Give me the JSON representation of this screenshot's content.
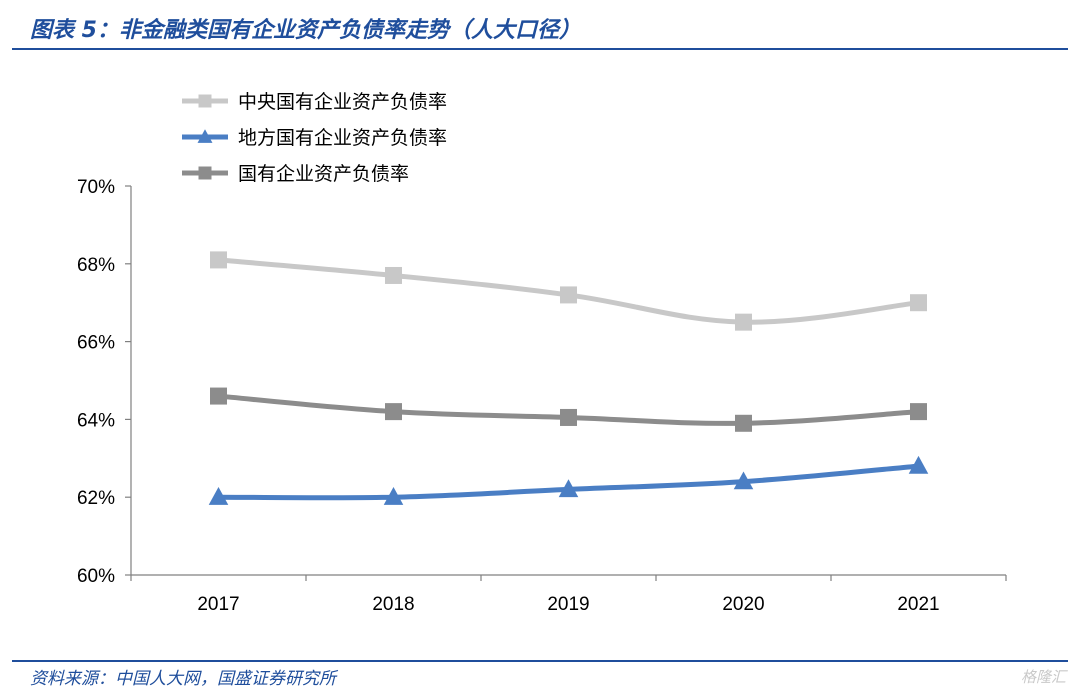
{
  "title": "图表 5：非金融类国有企业资产负债率走势（人大口径）",
  "source": "资料来源：中国人大网，国盛证券研究所",
  "watermark": "格隆汇",
  "chart_data": {
    "type": "line",
    "title": "",
    "xlabel": "",
    "ylabel": "",
    "categories": [
      "2017",
      "2018",
      "2019",
      "2020",
      "2021"
    ],
    "ylim": [
      60,
      70
    ],
    "yticks": [
      60,
      62,
      64,
      66,
      68,
      70
    ],
    "ytick_labels": [
      "60%",
      "62%",
      "64%",
      "66%",
      "68%",
      "70%"
    ],
    "grid": false,
    "legend_position": "top-left",
    "series": [
      {
        "name": "中央国有企业资产负债率",
        "values": [
          68.1,
          67.7,
          67.2,
          66.5,
          67.0
        ],
        "color": "#c8c8c8",
        "marker": "square"
      },
      {
        "name": "地方国有企业资产负债率",
        "values": [
          62.0,
          62.0,
          62.2,
          62.4,
          62.8
        ],
        "color": "#4a7ec4",
        "marker": "triangle"
      },
      {
        "name": "国有企业资产负债率",
        "values": [
          64.6,
          64.2,
          64.05,
          63.9,
          64.2
        ],
        "color": "#8c8c8c",
        "marker": "square"
      }
    ]
  }
}
